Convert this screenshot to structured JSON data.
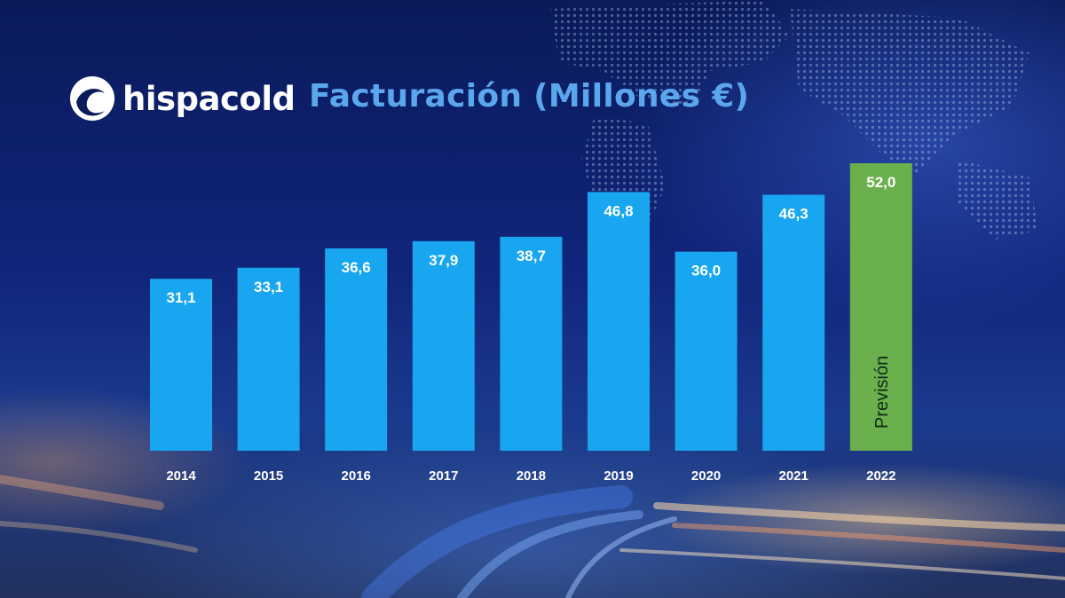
{
  "brand": {
    "name": "hispacold"
  },
  "colors": {
    "bar": "#17a6ef",
    "forecast_bar": "#6ab04c",
    "title": "#5aa7ee"
  },
  "chart_data": {
    "type": "bar",
    "title": "Facturación (Millones €)",
    "categories": [
      "2014",
      "2015",
      "2016",
      "2017",
      "2018",
      "2019",
      "2020",
      "2021",
      "2022"
    ],
    "values": [
      31.1,
      33.1,
      36.6,
      37.9,
      38.7,
      46.8,
      36.0,
      46.3,
      52.0
    ],
    "value_labels": [
      "31,1",
      "33,1",
      "36,6",
      "37,9",
      "38,7",
      "46,8",
      "36,0",
      "46,3",
      "52,0"
    ],
    "forecast_index": 8,
    "forecast_label": "Previsión",
    "ylim": [
      0,
      52
    ],
    "grid": false,
    "legend": "none"
  }
}
